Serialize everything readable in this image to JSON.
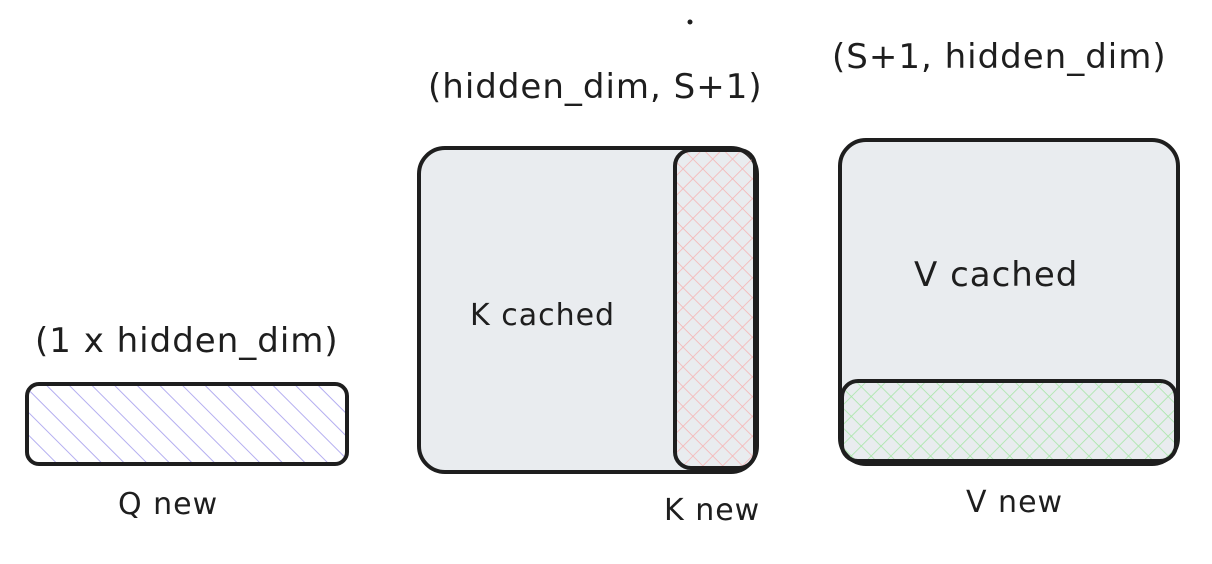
{
  "diagram": {
    "q": {
      "shape_label": "(1 x hidden_dim)",
      "caption": "Q new"
    },
    "k": {
      "shape_label": "(hidden_dim, S+1)",
      "cached_label": "K cached",
      "caption": "K new"
    },
    "v": {
      "shape_label": "(S+1, hidden_dim)",
      "cached_label": "V cached",
      "caption": "V new"
    }
  },
  "colors": {
    "stroke": "#1e1e1e",
    "cached_fill": "#e9ecef",
    "q_hatch": "#b4aef0",
    "k_new_hatch": "#f5b5b5",
    "v_new_hatch": "#a8e6a8"
  }
}
